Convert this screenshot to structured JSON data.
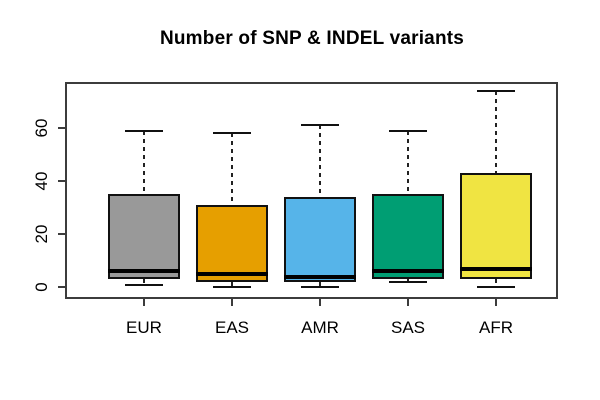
{
  "chart_data": {
    "type": "boxplot",
    "title": "Number of SNP & INDEL variants",
    "xlabel": "",
    "ylabel": "",
    "grid": false,
    "legend": "none",
    "categories": [
      "EUR",
      "EAS",
      "AMR",
      "SAS",
      "AFR"
    ],
    "series": [
      {
        "name": "EUR",
        "color": "#999999",
        "stats": {
          "whisker_low": 1,
          "q1": 3,
          "median": 6,
          "q3": 35,
          "whisker_high": 59
        }
      },
      {
        "name": "EAS",
        "color": "#E69F00",
        "stats": {
          "whisker_low": 0,
          "q1": 2,
          "median": 5,
          "q3": 31,
          "whisker_high": 58
        }
      },
      {
        "name": "AMR",
        "color": "#56B4E9",
        "stats": {
          "whisker_low": 0,
          "q1": 2,
          "median": 4,
          "q3": 34,
          "whisker_high": 61
        }
      },
      {
        "name": "SAS",
        "color": "#009E73",
        "stats": {
          "whisker_low": 2,
          "q1": 3,
          "median": 6,
          "q3": 35,
          "whisker_high": 59
        }
      },
      {
        "name": "AFR",
        "color": "#F0E442",
        "stats": {
          "whisker_low": 0,
          "q1": 3,
          "median": 7,
          "q3": 43,
          "whisker_high": 74
        }
      }
    ],
    "outliers": [],
    "y_axis": {
      "tick_values": [
        0,
        20,
        40,
        60
      ],
      "tick_labels": [
        "0",
        "20",
        "40",
        "60"
      ],
      "range": [
        -4,
        77
      ]
    },
    "colors": {
      "median": "#000000",
      "box_border": "#111111",
      "axis": "#3c3c3c",
      "text": "#000000",
      "background": "#ffffff"
    }
  }
}
